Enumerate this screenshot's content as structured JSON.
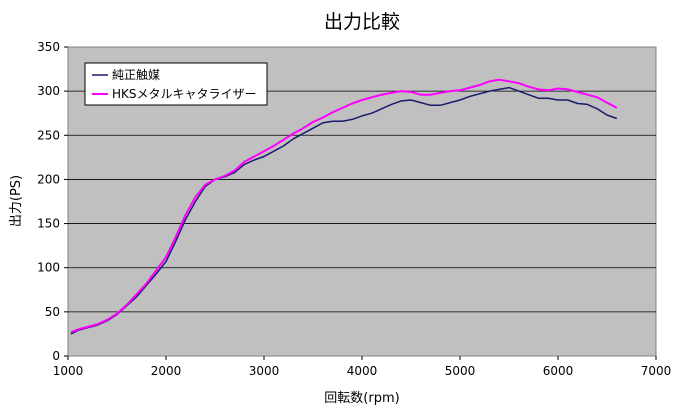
{
  "chart_data": {
    "type": "line",
    "title": "出力比較",
    "xlabel": "回転数(rpm)",
    "ylabel": "出力(PS)",
    "xlim": [
      1000,
      7000
    ],
    "ylim": [
      0,
      350
    ],
    "xticks": [
      1000,
      2000,
      3000,
      4000,
      5000,
      6000,
      7000
    ],
    "yticks": [
      0,
      50,
      100,
      150,
      200,
      250,
      300,
      350
    ],
    "grid": "horizontal",
    "legend_position": "top-left",
    "series": [
      {
        "name": "純正触媒",
        "color": "#1a1a6e",
        "points": [
          [
            1030,
            25
          ],
          [
            1100,
            29
          ],
          [
            1200,
            32
          ],
          [
            1300,
            35
          ],
          [
            1400,
            40
          ],
          [
            1500,
            47
          ],
          [
            1600,
            57
          ],
          [
            1700,
            67
          ],
          [
            1800,
            80
          ],
          [
            1900,
            93
          ],
          [
            2000,
            107
          ],
          [
            2100,
            130
          ],
          [
            2200,
            155
          ],
          [
            2300,
            175
          ],
          [
            2400,
            192
          ],
          [
            2500,
            200
          ],
          [
            2600,
            203
          ],
          [
            2700,
            208
          ],
          [
            2800,
            217
          ],
          [
            2900,
            222
          ],
          [
            3000,
            226
          ],
          [
            3100,
            232
          ],
          [
            3200,
            238
          ],
          [
            3300,
            246
          ],
          [
            3400,
            252
          ],
          [
            3500,
            258
          ],
          [
            3600,
            264
          ],
          [
            3700,
            266
          ],
          [
            3800,
            266
          ],
          [
            3900,
            268
          ],
          [
            4000,
            272
          ],
          [
            4100,
            275
          ],
          [
            4200,
            280
          ],
          [
            4300,
            285
          ],
          [
            4400,
            289
          ],
          [
            4500,
            290
          ],
          [
            4600,
            287
          ],
          [
            4700,
            284
          ],
          [
            4800,
            284
          ],
          [
            4900,
            287
          ],
          [
            5000,
            290
          ],
          [
            5100,
            294
          ],
          [
            5200,
            297
          ],
          [
            5300,
            300
          ],
          [
            5400,
            302
          ],
          [
            5500,
            304
          ],
          [
            5600,
            300
          ],
          [
            5700,
            296
          ],
          [
            5800,
            292
          ],
          [
            5900,
            292
          ],
          [
            6000,
            290
          ],
          [
            6100,
            290
          ],
          [
            6200,
            286
          ],
          [
            6300,
            285
          ],
          [
            6400,
            280
          ],
          [
            6500,
            273
          ],
          [
            6600,
            269
          ]
        ]
      },
      {
        "name": "HKSメタルキャタライザー",
        "color": "#ff00ff",
        "points": [
          [
            1030,
            27
          ],
          [
            1100,
            30
          ],
          [
            1200,
            33
          ],
          [
            1300,
            36
          ],
          [
            1400,
            41
          ],
          [
            1500,
            48
          ],
          [
            1600,
            58
          ],
          [
            1700,
            70
          ],
          [
            1800,
            82
          ],
          [
            1900,
            97
          ],
          [
            2000,
            112
          ],
          [
            2100,
            135
          ],
          [
            2200,
            160
          ],
          [
            2300,
            180
          ],
          [
            2400,
            194
          ],
          [
            2500,
            200
          ],
          [
            2600,
            204
          ],
          [
            2700,
            210
          ],
          [
            2800,
            220
          ],
          [
            2900,
            226
          ],
          [
            3000,
            232
          ],
          [
            3100,
            238
          ],
          [
            3200,
            245
          ],
          [
            3300,
            252
          ],
          [
            3400,
            258
          ],
          [
            3500,
            265
          ],
          [
            3600,
            270
          ],
          [
            3700,
            276
          ],
          [
            3800,
            281
          ],
          [
            3900,
            286
          ],
          [
            4000,
            290
          ],
          [
            4100,
            293
          ],
          [
            4200,
            296
          ],
          [
            4300,
            298
          ],
          [
            4400,
            300
          ],
          [
            4500,
            299
          ],
          [
            4600,
            296
          ],
          [
            4700,
            296
          ],
          [
            4800,
            298
          ],
          [
            4900,
            300
          ],
          [
            5000,
            301
          ],
          [
            5100,
            304
          ],
          [
            5200,
            307
          ],
          [
            5300,
            311
          ],
          [
            5400,
            313
          ],
          [
            5500,
            311
          ],
          [
            5600,
            309
          ],
          [
            5700,
            305
          ],
          [
            5800,
            302
          ],
          [
            5900,
            301
          ],
          [
            6000,
            303
          ],
          [
            6100,
            302
          ],
          [
            6200,
            299
          ],
          [
            6300,
            296
          ],
          [
            6400,
            293
          ],
          [
            6500,
            287
          ],
          [
            6600,
            281
          ]
        ]
      }
    ]
  }
}
